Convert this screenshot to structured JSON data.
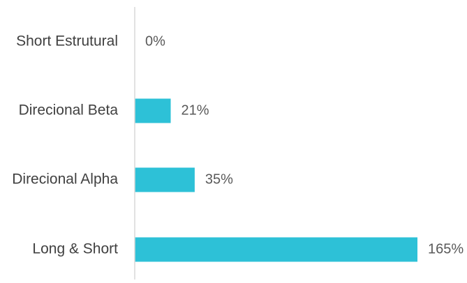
{
  "chart_data": {
    "type": "bar",
    "orientation": "horizontal",
    "categories": [
      "Short Estrutural",
      "Direcional Beta",
      "Direcional Alpha",
      "Long & Short"
    ],
    "values": [
      0,
      21,
      35,
      165
    ],
    "value_labels": [
      "0%",
      "21%",
      "35%",
      "165%"
    ],
    "unit": "%",
    "title": "",
    "xlabel": "",
    "ylabel": "",
    "xlim": [
      0,
      170
    ],
    "grid": false,
    "legend": "none",
    "bar_color": "#2DC1D7",
    "axis_color": "#D9D9D9"
  }
}
